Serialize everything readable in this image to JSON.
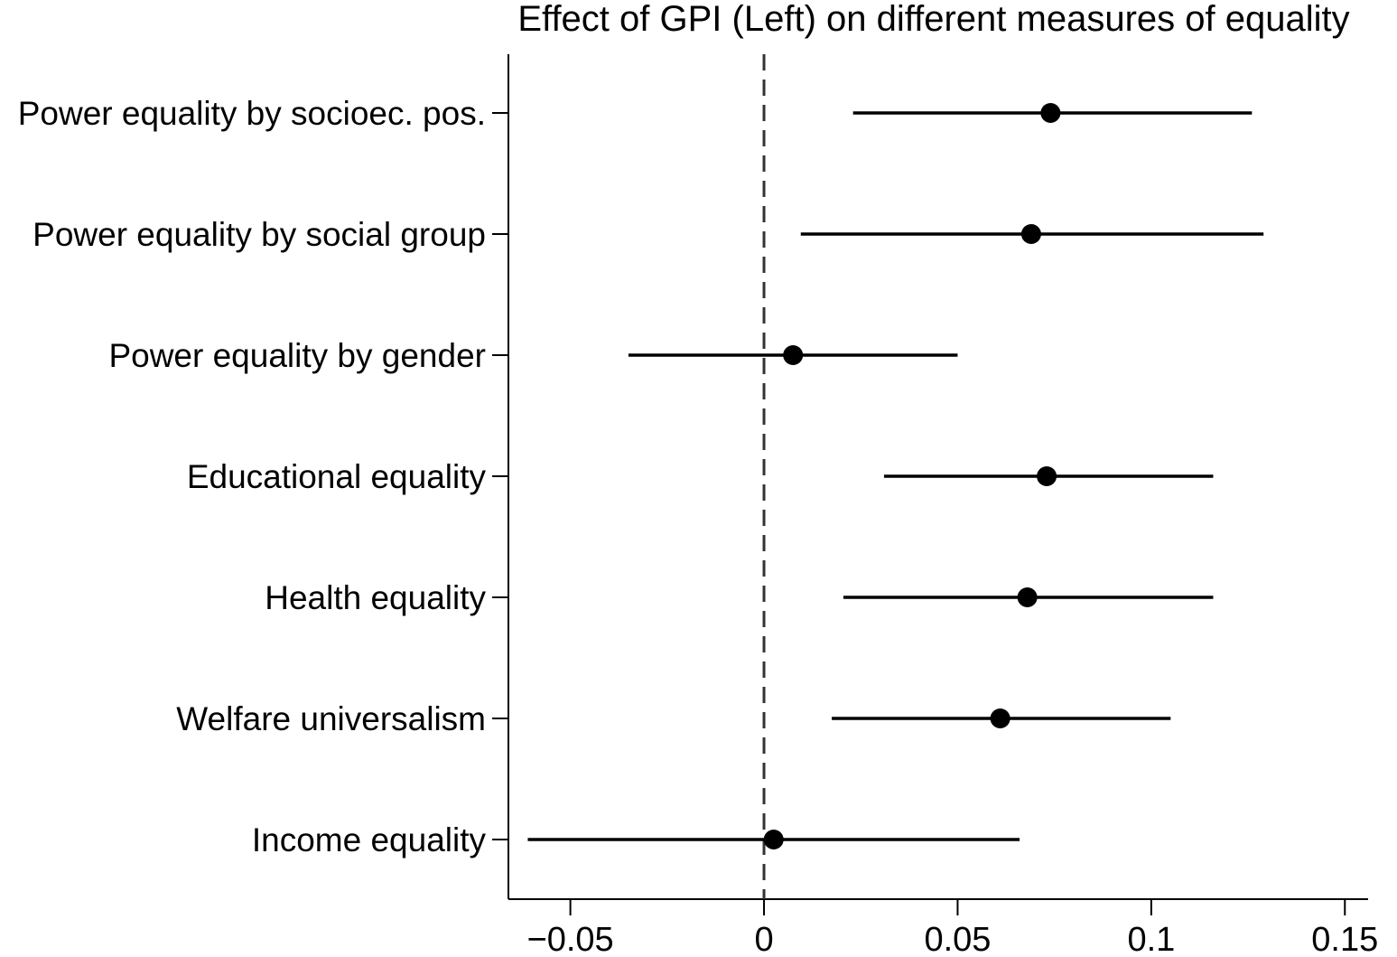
{
  "chart_data": {
    "type": "forest",
    "title": "Effect of GPI (Left) on different measures of equality",
    "xlabel": "",
    "ylabel": "",
    "xlim": [
      -0.066,
      0.156
    ],
    "x_ticks": [
      -0.05,
      0,
      0.05,
      0.1,
      0.15
    ],
    "x_tick_labels": [
      "−0.05",
      "0",
      "0.05",
      "0.1",
      "0.15"
    ],
    "reference_line": 0,
    "grid": false,
    "colors": {
      "marker": "#000000",
      "ci_line": "#000000",
      "axis": "#000000",
      "reference_line": "#333333"
    },
    "series": [
      {
        "name": "Power equality by socioec. pos.",
        "estimate": 0.074,
        "ci_low": 0.023,
        "ci_high": 0.126
      },
      {
        "name": "Power equality by social group",
        "estimate": 0.069,
        "ci_low": 0.0095,
        "ci_high": 0.129
      },
      {
        "name": "Power equality by gender",
        "estimate": 0.0075,
        "ci_low": -0.035,
        "ci_high": 0.05
      },
      {
        "name": "Educational equality",
        "estimate": 0.073,
        "ci_low": 0.031,
        "ci_high": 0.116
      },
      {
        "name": "Health equality",
        "estimate": 0.068,
        "ci_low": 0.0205,
        "ci_high": 0.116
      },
      {
        "name": "Welfare universalism",
        "estimate": 0.061,
        "ci_low": 0.0175,
        "ci_high": 0.105
      },
      {
        "name": "Income equality",
        "estimate": 0.0025,
        "ci_low": -0.061,
        "ci_high": 0.066
      }
    ]
  }
}
